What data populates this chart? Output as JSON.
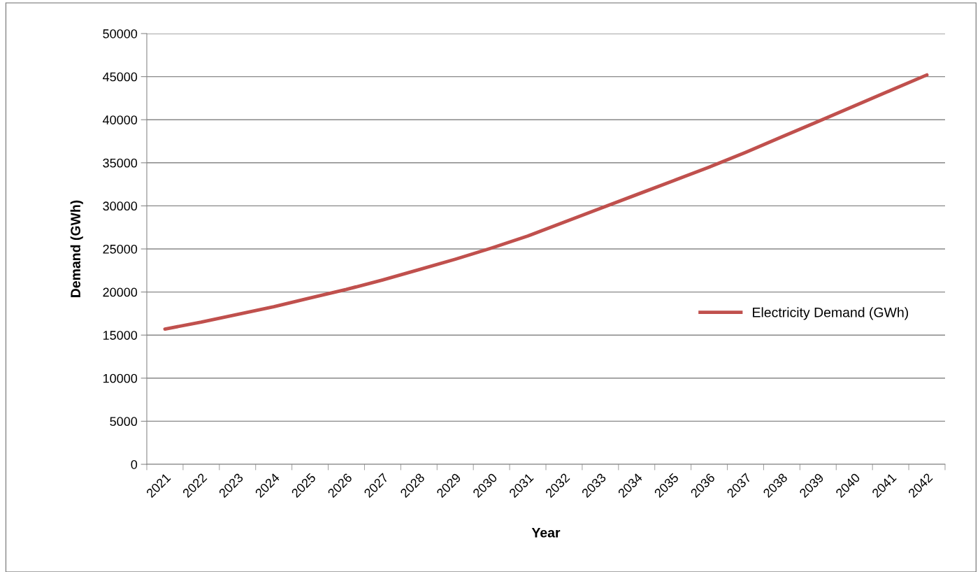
{
  "chart_data": {
    "type": "line",
    "xlabel": "Year",
    "ylabel": "Demand (GWh)",
    "categories": [
      "2021",
      "2022",
      "2023",
      "2024",
      "2025",
      "2026",
      "2027",
      "2028",
      "2029",
      "2030",
      "2031",
      "2032",
      "2033",
      "2034",
      "2035",
      "2036",
      "2037",
      "2038",
      "2039",
      "2040",
      "2041",
      "2042"
    ],
    "series": [
      {
        "name": "Electricity Demand (GWh)",
        "color": "#c0504d",
        "values": [
          15700,
          16500,
          17400,
          18300,
          19300,
          20300,
          21400,
          22600,
          23800,
          25100,
          26500,
          28100,
          29700,
          31300,
          32900,
          34500,
          36200,
          38000,
          39800,
          41600,
          43400,
          45200
        ]
      }
    ],
    "ylim": [
      0,
      50000
    ],
    "yticks": [
      0,
      5000,
      10000,
      15000,
      20000,
      25000,
      30000,
      35000,
      40000,
      45000,
      50000
    ],
    "grid": "y",
    "legend": "right",
    "marker": "none",
    "line_style": "solid"
  }
}
